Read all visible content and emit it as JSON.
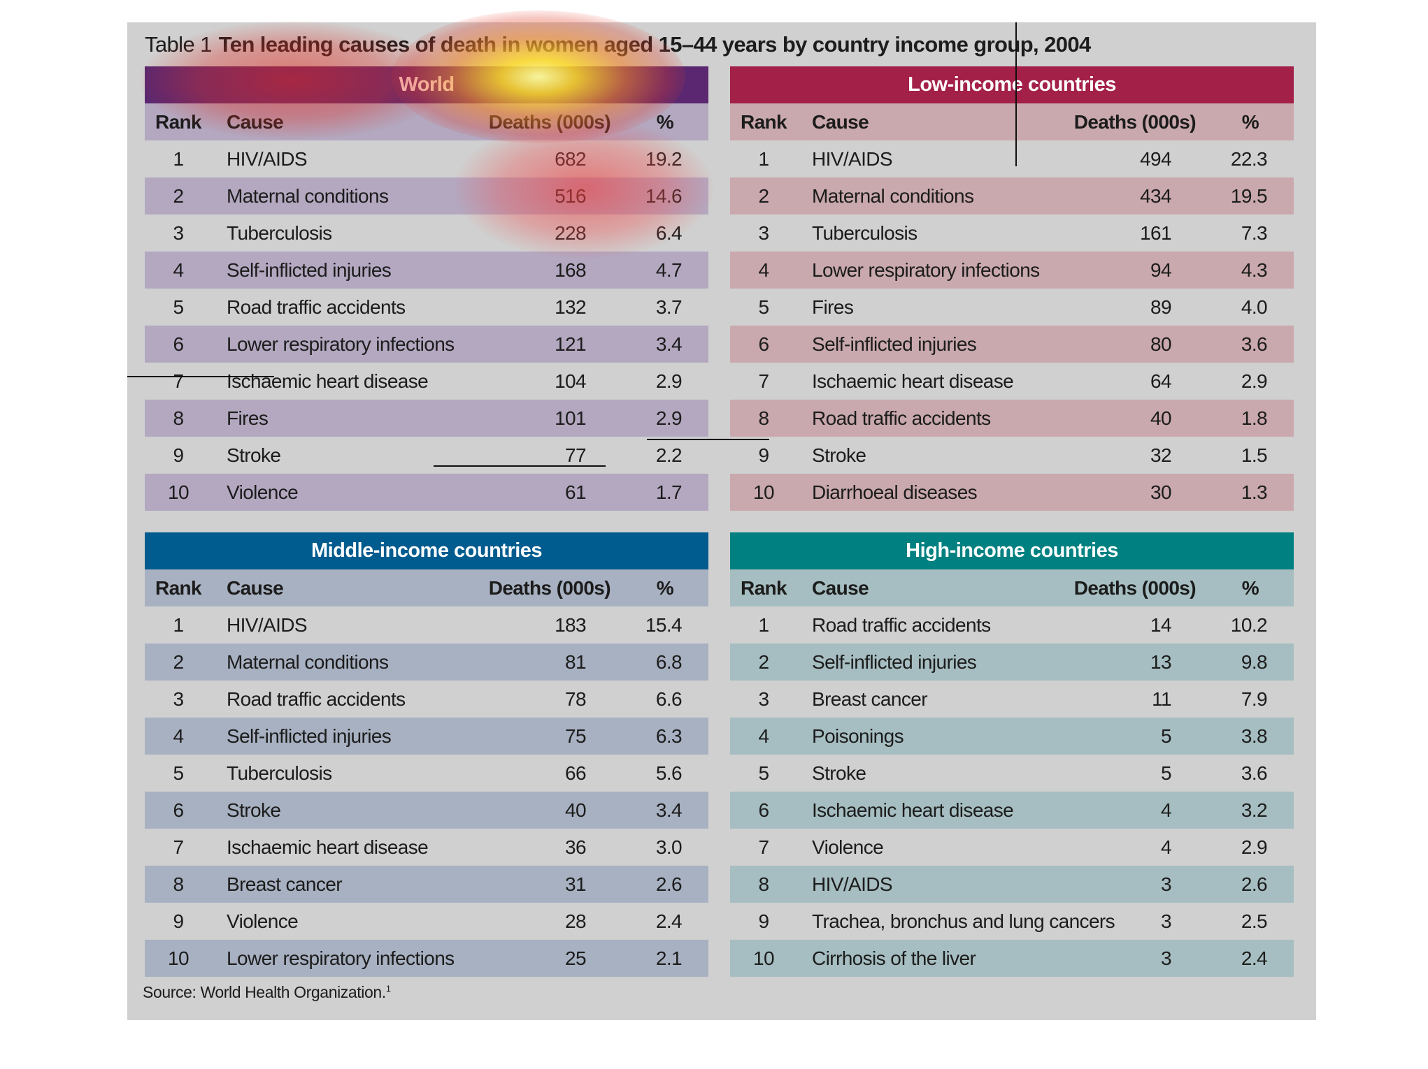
{
  "title": {
    "number": "Table 1",
    "text": "Ten leading causes of death in women aged 15–44 years by country income group, 2004"
  },
  "column_labels": [
    "Rank",
    "Cause",
    "Deaths (000s)",
    "%"
  ],
  "colors": {
    "world_header": "#5a2770",
    "world_band": "#b3a8c0",
    "low_header": "#a32048",
    "low_band": "#c9a9ad",
    "middle_header": "#005b8e",
    "middle_band": "#a8b1c1",
    "high_header": "#008080",
    "high_band": "#a6bec1",
    "panel": "#d0d0d0"
  },
  "source": {
    "text": "Source: World Health Organization.",
    "ref": "1"
  },
  "chart_data": [
    {
      "type": "table",
      "title": "World",
      "columns": [
        "Rank",
        "Cause",
        "Deaths (000s)",
        "%"
      ],
      "rows": [
        [
          "1",
          "HIV/AIDS",
          "682",
          "19.2"
        ],
        [
          "2",
          "Maternal conditions",
          "516",
          "14.6"
        ],
        [
          "3",
          "Tuberculosis",
          "228",
          "6.4"
        ],
        [
          "4",
          "Self-inflicted injuries",
          "168",
          "4.7"
        ],
        [
          "5",
          "Road traffic accidents",
          "132",
          "3.7"
        ],
        [
          "6",
          "Lower respiratory infections",
          "121",
          "3.4"
        ],
        [
          "7",
          "Ischaemic heart disease",
          "104",
          "2.9"
        ],
        [
          "8",
          "Fires",
          "101",
          "2.9"
        ],
        [
          "9",
          "Stroke",
          "77",
          "2.2"
        ],
        [
          "10",
          "Violence",
          "61",
          "1.7"
        ]
      ]
    },
    {
      "type": "table",
      "title": "Low-income countries",
      "columns": [
        "Rank",
        "Cause",
        "Deaths (000s)",
        "%"
      ],
      "rows": [
        [
          "1",
          "HIV/AIDS",
          "494",
          "22.3"
        ],
        [
          "2",
          "Maternal conditions",
          "434",
          "19.5"
        ],
        [
          "3",
          "Tuberculosis",
          "161",
          "7.3"
        ],
        [
          "4",
          "Lower respiratory infections",
          "94",
          "4.3"
        ],
        [
          "5",
          "Fires",
          "89",
          "4.0"
        ],
        [
          "6",
          "Self-inflicted injuries",
          "80",
          "3.6"
        ],
        [
          "7",
          "Ischaemic heart disease",
          "64",
          "2.9"
        ],
        [
          "8",
          "Road traffic accidents",
          "40",
          "1.8"
        ],
        [
          "9",
          "Stroke",
          "32",
          "1.5"
        ],
        [
          "10",
          "Diarrhoeal diseases",
          "30",
          "1.3"
        ]
      ]
    },
    {
      "type": "table",
      "title": "Middle-income countries",
      "columns": [
        "Rank",
        "Cause",
        "Deaths (000s)",
        "%"
      ],
      "rows": [
        [
          "1",
          "HIV/AIDS",
          "183",
          "15.4"
        ],
        [
          "2",
          "Maternal conditions",
          "81",
          "6.8"
        ],
        [
          "3",
          "Road traffic accidents",
          "78",
          "6.6"
        ],
        [
          "4",
          "Self-inflicted injuries",
          "75",
          "6.3"
        ],
        [
          "5",
          "Tuberculosis",
          "66",
          "5.6"
        ],
        [
          "6",
          "Stroke",
          "40",
          "3.4"
        ],
        [
          "7",
          "Ischaemic heart disease",
          "36",
          "3.0"
        ],
        [
          "8",
          "Breast cancer",
          "31",
          "2.6"
        ],
        [
          "9",
          "Violence",
          "28",
          "2.4"
        ],
        [
          "10",
          "Lower respiratory infections",
          "25",
          "2.1"
        ]
      ]
    },
    {
      "type": "table",
      "title": "High-income countries",
      "columns": [
        "Rank",
        "Cause",
        "Deaths (000s)",
        "%"
      ],
      "rows": [
        [
          "1",
          "Road traffic accidents",
          "14",
          "10.2"
        ],
        [
          "2",
          "Self-inflicted injuries",
          "13",
          "9.8"
        ],
        [
          "3",
          "Breast cancer",
          "11",
          "7.9"
        ],
        [
          "4",
          "Poisonings",
          "5",
          "3.8"
        ],
        [
          "5",
          "Stroke",
          "5",
          "3.6"
        ],
        [
          "6",
          "Ischaemic heart disease",
          "4",
          "3.2"
        ],
        [
          "7",
          "Violence",
          "4",
          "2.9"
        ],
        [
          "8",
          "HIV/AIDS",
          "3",
          "2.6"
        ],
        [
          "9",
          "Trachea, bronchus and lung cancers",
          "3",
          "2.5"
        ],
        [
          "10",
          "Cirrhosis of the liver",
          "3",
          "2.4"
        ]
      ]
    }
  ]
}
